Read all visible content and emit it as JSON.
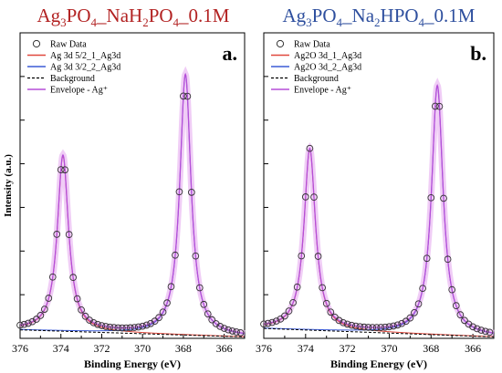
{
  "chart_data": [
    {
      "type": "line",
      "panel_label": "a.",
      "title": {
        "parts": [
          "Ag",
          "3",
          "PO",
          "4",
          "_NaH",
          "2",
          "PO",
          "4",
          "_0.1M"
        ]
      },
      "title_color": "#b22222",
      "xlabel": "Binding Energy (eV)",
      "ylabel": "Intensity (a.u.)",
      "xlim": [
        376,
        365
      ],
      "ylim": [
        0,
        1.08
      ],
      "xticks": [
        376,
        374,
        372,
        370,
        368,
        366
      ],
      "peaks": [
        {
          "center": 373.9,
          "amplitude": 0.62,
          "width": 0.33
        },
        {
          "center": 367.9,
          "amplitude": 0.92,
          "width": 0.33
        }
      ],
      "background": {
        "start": 0.03,
        "end": 0.005
      },
      "raw_data_x": [
        376.0,
        375.8,
        375.6,
        375.4,
        375.2,
        375.0,
        374.8,
        374.6,
        374.4,
        374.2,
        374.0,
        373.8,
        373.6,
        373.4,
        373.2,
        373.0,
        372.8,
        372.6,
        372.4,
        372.2,
        372.0,
        371.8,
        371.6,
        371.4,
        371.2,
        371.0,
        370.8,
        370.6,
        370.4,
        370.2,
        370.0,
        369.8,
        369.6,
        369.4,
        369.2,
        369.0,
        368.8,
        368.6,
        368.4,
        368.2,
        368.0,
        367.8,
        367.6,
        367.4,
        367.2,
        367.0,
        366.8,
        366.6,
        366.4,
        366.2,
        366.0,
        365.8,
        365.6,
        365.4,
        365.2
      ],
      "legend": [
        {
          "label": "Raw Data",
          "kind": "circle",
          "color": "#333333"
        },
        {
          "label": "Ag 3d 5/2_1_Ag3d",
          "kind": "line",
          "color": "#e0483c"
        },
        {
          "label": "Ag 3d 3/2_2_Ag3d",
          "kind": "line",
          "color": "#3b5bd6"
        },
        {
          "label": "Background",
          "kind": "dash",
          "color": "#000000"
        },
        {
          "label": "Envelope - Ag⁺",
          "kind": "line",
          "color": "#b54fd8"
        }
      ]
    },
    {
      "type": "line",
      "panel_label": "b.",
      "title": {
        "parts": [
          "Ag",
          "3",
          "PO",
          "4",
          "_Na",
          "2",
          "HPO",
          "4",
          "_0.1M"
        ]
      },
      "title_color": "#2e4f9e",
      "xlabel": "Binding Energy (eV)",
      "ylabel": "",
      "xlim": [
        376,
        365
      ],
      "ylim": [
        0,
        1.08
      ],
      "xticks": [
        376,
        374,
        372,
        370,
        368,
        366
      ],
      "peaks": [
        {
          "center": 373.8,
          "amplitude": 0.64,
          "width": 0.33
        },
        {
          "center": 367.7,
          "amplitude": 0.88,
          "width": 0.33
        }
      ],
      "background": {
        "start": 0.035,
        "end": 0.005
      },
      "raw_data_x": [
        376.0,
        375.8,
        375.6,
        375.4,
        375.2,
        375.0,
        374.8,
        374.6,
        374.4,
        374.2,
        374.0,
        373.8,
        373.6,
        373.4,
        373.2,
        373.0,
        372.8,
        372.6,
        372.4,
        372.2,
        372.0,
        371.8,
        371.6,
        371.4,
        371.2,
        371.0,
        370.8,
        370.6,
        370.4,
        370.2,
        370.0,
        369.8,
        369.6,
        369.4,
        369.2,
        369.0,
        368.8,
        368.6,
        368.4,
        368.2,
        368.0,
        367.8,
        367.6,
        367.4,
        367.2,
        367.0,
        366.8,
        366.6,
        366.4,
        366.2,
        366.0,
        365.8,
        365.6,
        365.4,
        365.2
      ],
      "legend": [
        {
          "label": "Raw Data",
          "kind": "circle",
          "color": "#333333"
        },
        {
          "label": "Ag2O 3d_1_Ag3d",
          "kind": "line",
          "color": "#e0483c"
        },
        {
          "label": "Ag2O 3d_2_Ag3d",
          "kind": "line",
          "color": "#3b5bd6"
        },
        {
          "label": "Background",
          "kind": "dash",
          "color": "#000000"
        },
        {
          "label": "Envelope - Ag⁺",
          "kind": "line",
          "color": "#b54fd8"
        }
      ]
    }
  ]
}
